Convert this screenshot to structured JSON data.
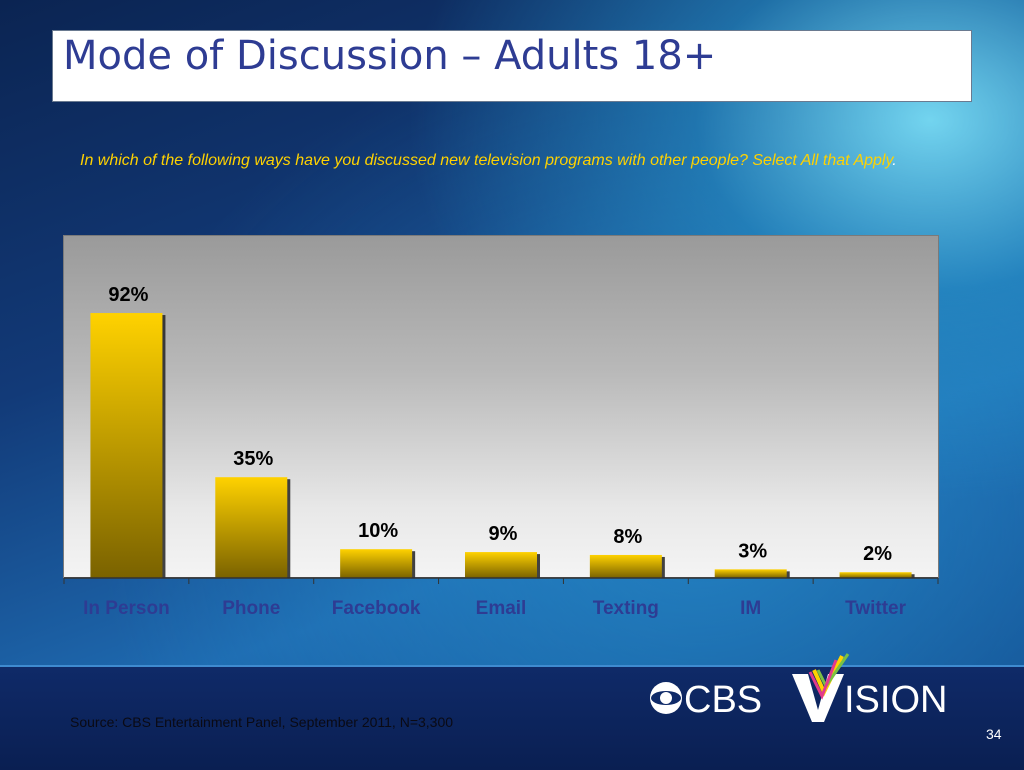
{
  "slide": {
    "title": "Mode of Discussion – Adults 18+",
    "question_main": "In which of the following ways have you discussed new television programs with other people? Select All that Apply",
    "question_end": ".",
    "source": "Source:  CBS Entertainment Panel, September 2011, N=3,300",
    "page_number": "34",
    "logo_text": "CBS VISION"
  },
  "chart_data": {
    "type": "bar",
    "categories": [
      "In Person",
      "Phone",
      "Facebook",
      "Email",
      "Texting",
      "IM",
      "Twitter"
    ],
    "values": [
      92,
      35,
      10,
      9,
      8,
      3,
      2
    ],
    "data_labels": [
      "92%",
      "35%",
      "10%",
      "9%",
      "8%",
      "3%",
      "2%"
    ],
    "ylim": [
      0,
      100
    ],
    "grid": false,
    "colors": {
      "bar_top": "#ffd200",
      "bar_bottom": "#7a6200",
      "label": "#000000",
      "category_label": "#2e3c93"
    }
  }
}
